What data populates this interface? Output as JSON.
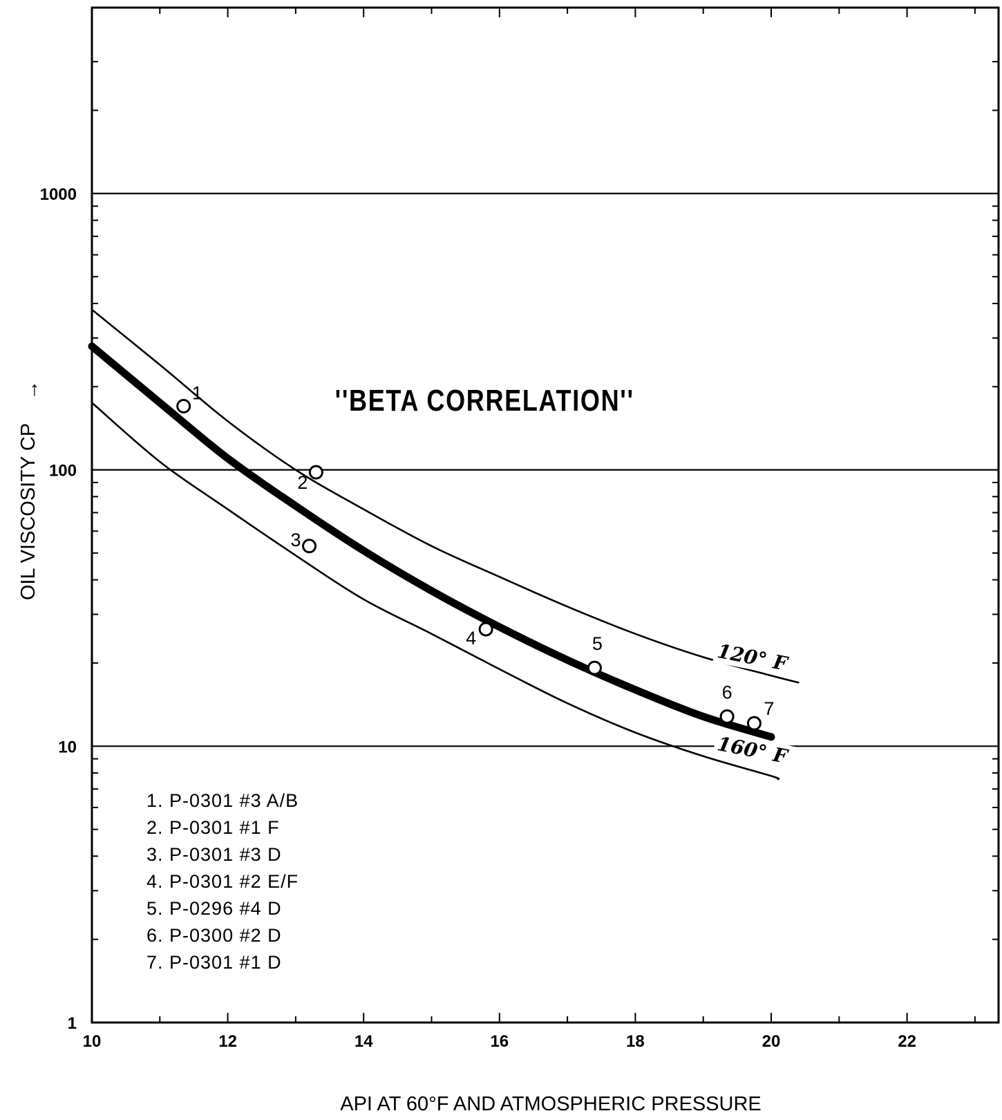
{
  "chart_data": {
    "type": "line",
    "title": "''BETA CORRELATION''",
    "xlabel": "API AT 60°F AND ATMOSPHERIC PRESSURE",
    "ylabel": "OIL VISCOSITY CP",
    "ylabel_arrow": "↑",
    "xlim": [
      10,
      23.3
    ],
    "ylim": [
      1,
      3500
    ],
    "y_scale": "log",
    "x_ticks": [
      10,
      12,
      14,
      16,
      18,
      20,
      22
    ],
    "x_tick_labels": [
      "10",
      "12",
      "14",
      "16",
      "18",
      "20",
      "22"
    ],
    "y_ticks": [
      1,
      10,
      100,
      1000
    ],
    "y_tick_labels": [
      "1",
      "10",
      "100",
      "1000"
    ],
    "horizontal_gridlines": [
      10,
      100,
      1000
    ],
    "series": [
      {
        "name": "120° F",
        "style": "thin",
        "x": [
          10,
          11,
          12,
          13,
          14,
          15,
          16,
          17,
          18,
          19,
          20,
          20.4
        ],
        "y": [
          380,
          240,
          150,
          100,
          72,
          53,
          41,
          32,
          25.5,
          21,
          18,
          17
        ]
      },
      {
        "name": "",
        "style": "thick",
        "x": [
          10,
          11,
          12,
          13,
          14,
          15,
          16,
          17,
          18,
          19,
          20
        ],
        "y": [
          280,
          175,
          110,
          74,
          51,
          36.5,
          27,
          20.5,
          16,
          12.8,
          10.8
        ]
      },
      {
        "name": "160° F",
        "style": "thin",
        "x": [
          10,
          11,
          12,
          13,
          14,
          15,
          16,
          17,
          18,
          19,
          20,
          20.1
        ],
        "y": [
          175,
          107,
          72,
          49,
          34,
          25.5,
          19,
          14.3,
          11.2,
          9.2,
          7.8,
          7.6
        ]
      }
    ],
    "curve_labels": [
      {
        "text": "120° F",
        "x": 19.6,
        "y": 21
      },
      {
        "text": "160° F",
        "x": 19.6,
        "y": 9.7
      }
    ],
    "points": [
      {
        "label": "1",
        "x": 11.35,
        "y": 170
      },
      {
        "label": "2",
        "x": 13.3,
        "y": 98
      },
      {
        "label": "3",
        "x": 13.2,
        "y": 53
      },
      {
        "label": "4",
        "x": 15.8,
        "y": 26.5
      },
      {
        "label": "5",
        "x": 17.4,
        "y": 19.2
      },
      {
        "label": "6",
        "x": 19.35,
        "y": 12.8
      },
      {
        "label": "7",
        "x": 19.75,
        "y": 12.1
      }
    ],
    "legend": {
      "position": "bottom-left",
      "entries": [
        "1. P-0301 #3 A/B",
        "2. P-0301 #1 F",
        "3. P-0301 #3 D",
        "4. P-0301 #2 E/F",
        "5. P-0296 #4 D",
        "6. P-0300 #2 D",
        "7. P-0301 #1 D"
      ]
    },
    "colors": {
      "ink": "#000000",
      "background": "#ffffff"
    }
  }
}
